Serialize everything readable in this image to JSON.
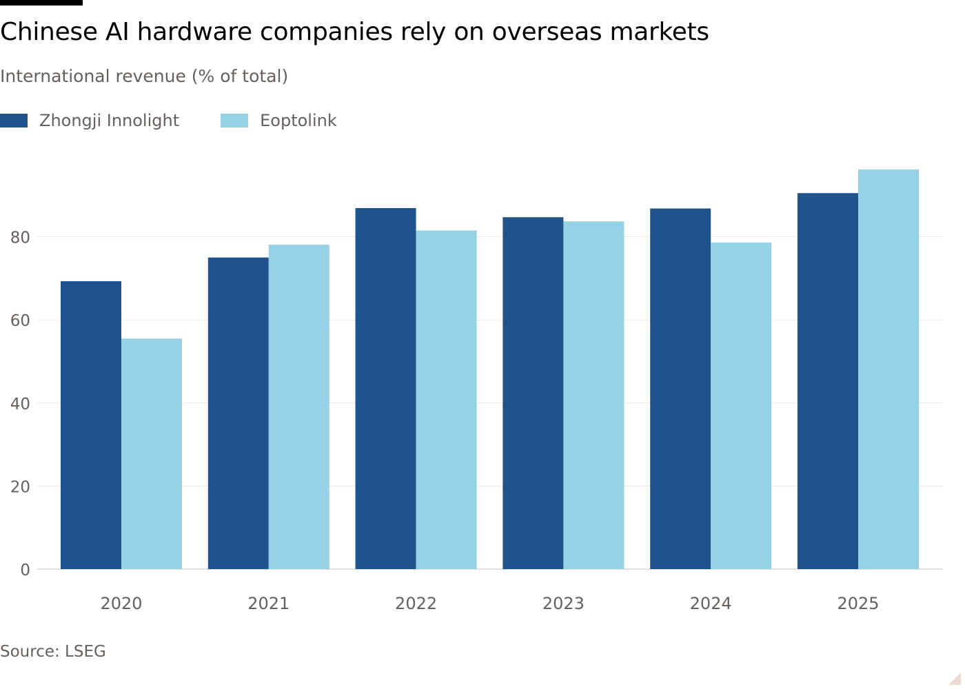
{
  "title": "Chinese AI hardware companies rely on overseas markets",
  "subtitle": "International revenue (% of total)",
  "source": "Source: LSEG",
  "colors": {
    "zhongji": "#1f538b",
    "eoptolink": "#96d2e5",
    "grid": "#ece9e6",
    "axis_text": "#66605c"
  },
  "chart_data": {
    "type": "bar",
    "title": "Chinese AI hardware companies rely on overseas markets",
    "subtitle": "International revenue (% of total)",
    "categories": [
      "2020",
      "2021",
      "2022",
      "2023",
      "2024",
      "2025"
    ],
    "series": [
      {
        "name": "Zhongji Innolight",
        "color": "#1f538b",
        "values": [
          69.3,
          75.0,
          86.9,
          84.7,
          86.8,
          90.5
        ]
      },
      {
        "name": "Eoptolink",
        "color": "#96d2e5",
        "values": [
          55.5,
          78.1,
          81.5,
          83.7,
          78.6,
          96.2
        ]
      }
    ],
    "ylim": [
      0,
      100
    ],
    "yticks": [
      0,
      20,
      40,
      60,
      80
    ],
    "xlabel": "",
    "ylabel": "",
    "grid": true,
    "legend": "top-left"
  }
}
